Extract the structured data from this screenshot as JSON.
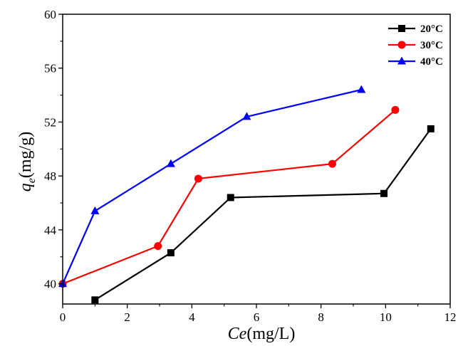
{
  "chart_data": {
    "type": "line",
    "xlabel": {
      "main": "Ce",
      "unit": "(mg/L)"
    },
    "ylabel": {
      "main": "q",
      "sub": "e",
      "unit": "(mg/g)"
    },
    "xlim": [
      0,
      12
    ],
    "ylim": [
      38.5,
      60
    ],
    "xticks": [
      0,
      2,
      4,
      6,
      8,
      10,
      12
    ],
    "yticks": [
      40,
      44,
      48,
      52,
      56,
      60
    ],
    "grid": false,
    "legend_position": "top-right",
    "series": [
      {
        "name": "20°C",
        "color": "#000000",
        "marker": "square",
        "points": [
          [
            1.0,
            38.8
          ],
          [
            3.35,
            42.3
          ],
          [
            5.2,
            46.4
          ],
          [
            9.95,
            46.7
          ],
          [
            11.4,
            51.5
          ]
        ]
      },
      {
        "name": "30°C",
        "color": "#ff0000",
        "marker": "circle",
        "points": [
          [
            0.0,
            40.0
          ],
          [
            2.95,
            42.8
          ],
          [
            4.2,
            47.8
          ],
          [
            8.35,
            48.9
          ],
          [
            10.3,
            52.9
          ]
        ]
      },
      {
        "name": "40°C",
        "color": "#0000ff",
        "marker": "triangle",
        "points": [
          [
            0.0,
            40.0
          ],
          [
            1.0,
            45.4
          ],
          [
            3.35,
            48.9
          ],
          [
            5.7,
            52.4
          ],
          [
            9.25,
            54.4
          ]
        ]
      }
    ]
  }
}
